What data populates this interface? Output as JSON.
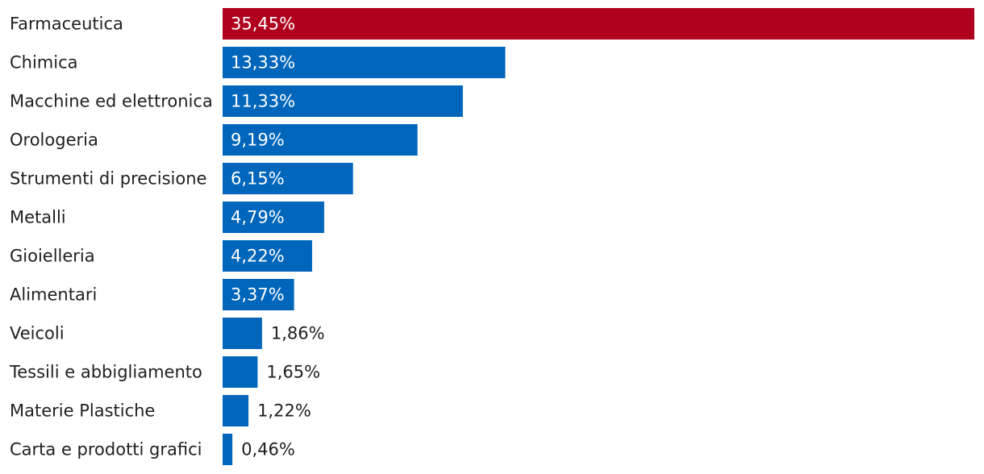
{
  "chart_data": {
    "type": "bar",
    "orientation": "horizontal",
    "title": "",
    "xlabel": "",
    "ylabel": "",
    "xlim": [
      0,
      35.45
    ],
    "grid": false,
    "legend": "none",
    "categories": [
      "Farmaceutica",
      "Chimica",
      "Macchine ed elettronica",
      "Orologeria",
      "Strumenti di precisione",
      "Metalli",
      "Gioielleria",
      "Alimentari",
      "Veicoli",
      "Tessili e abbigliamento",
      "Materie Plastiche",
      "Carta e prodotti grafici"
    ],
    "values": [
      35.45,
      13.33,
      11.33,
      9.19,
      6.15,
      4.79,
      4.22,
      3.37,
      1.86,
      1.65,
      1.22,
      0.46
    ],
    "value_labels": [
      "35,45%",
      "13,33%",
      "11,33%",
      "9,19%",
      "6,15%",
      "4,79%",
      "4,22%",
      "3,37%",
      "1,86%",
      "1,65%",
      "1,22%",
      "0,46%"
    ],
    "highlight_index": 0,
    "colors": {
      "highlight": "#b0001e",
      "bar": "#0066bb",
      "label_inside": "#ffffff",
      "label_outside": "#1f1f1f",
      "category_text": "#1f1f1f"
    }
  }
}
